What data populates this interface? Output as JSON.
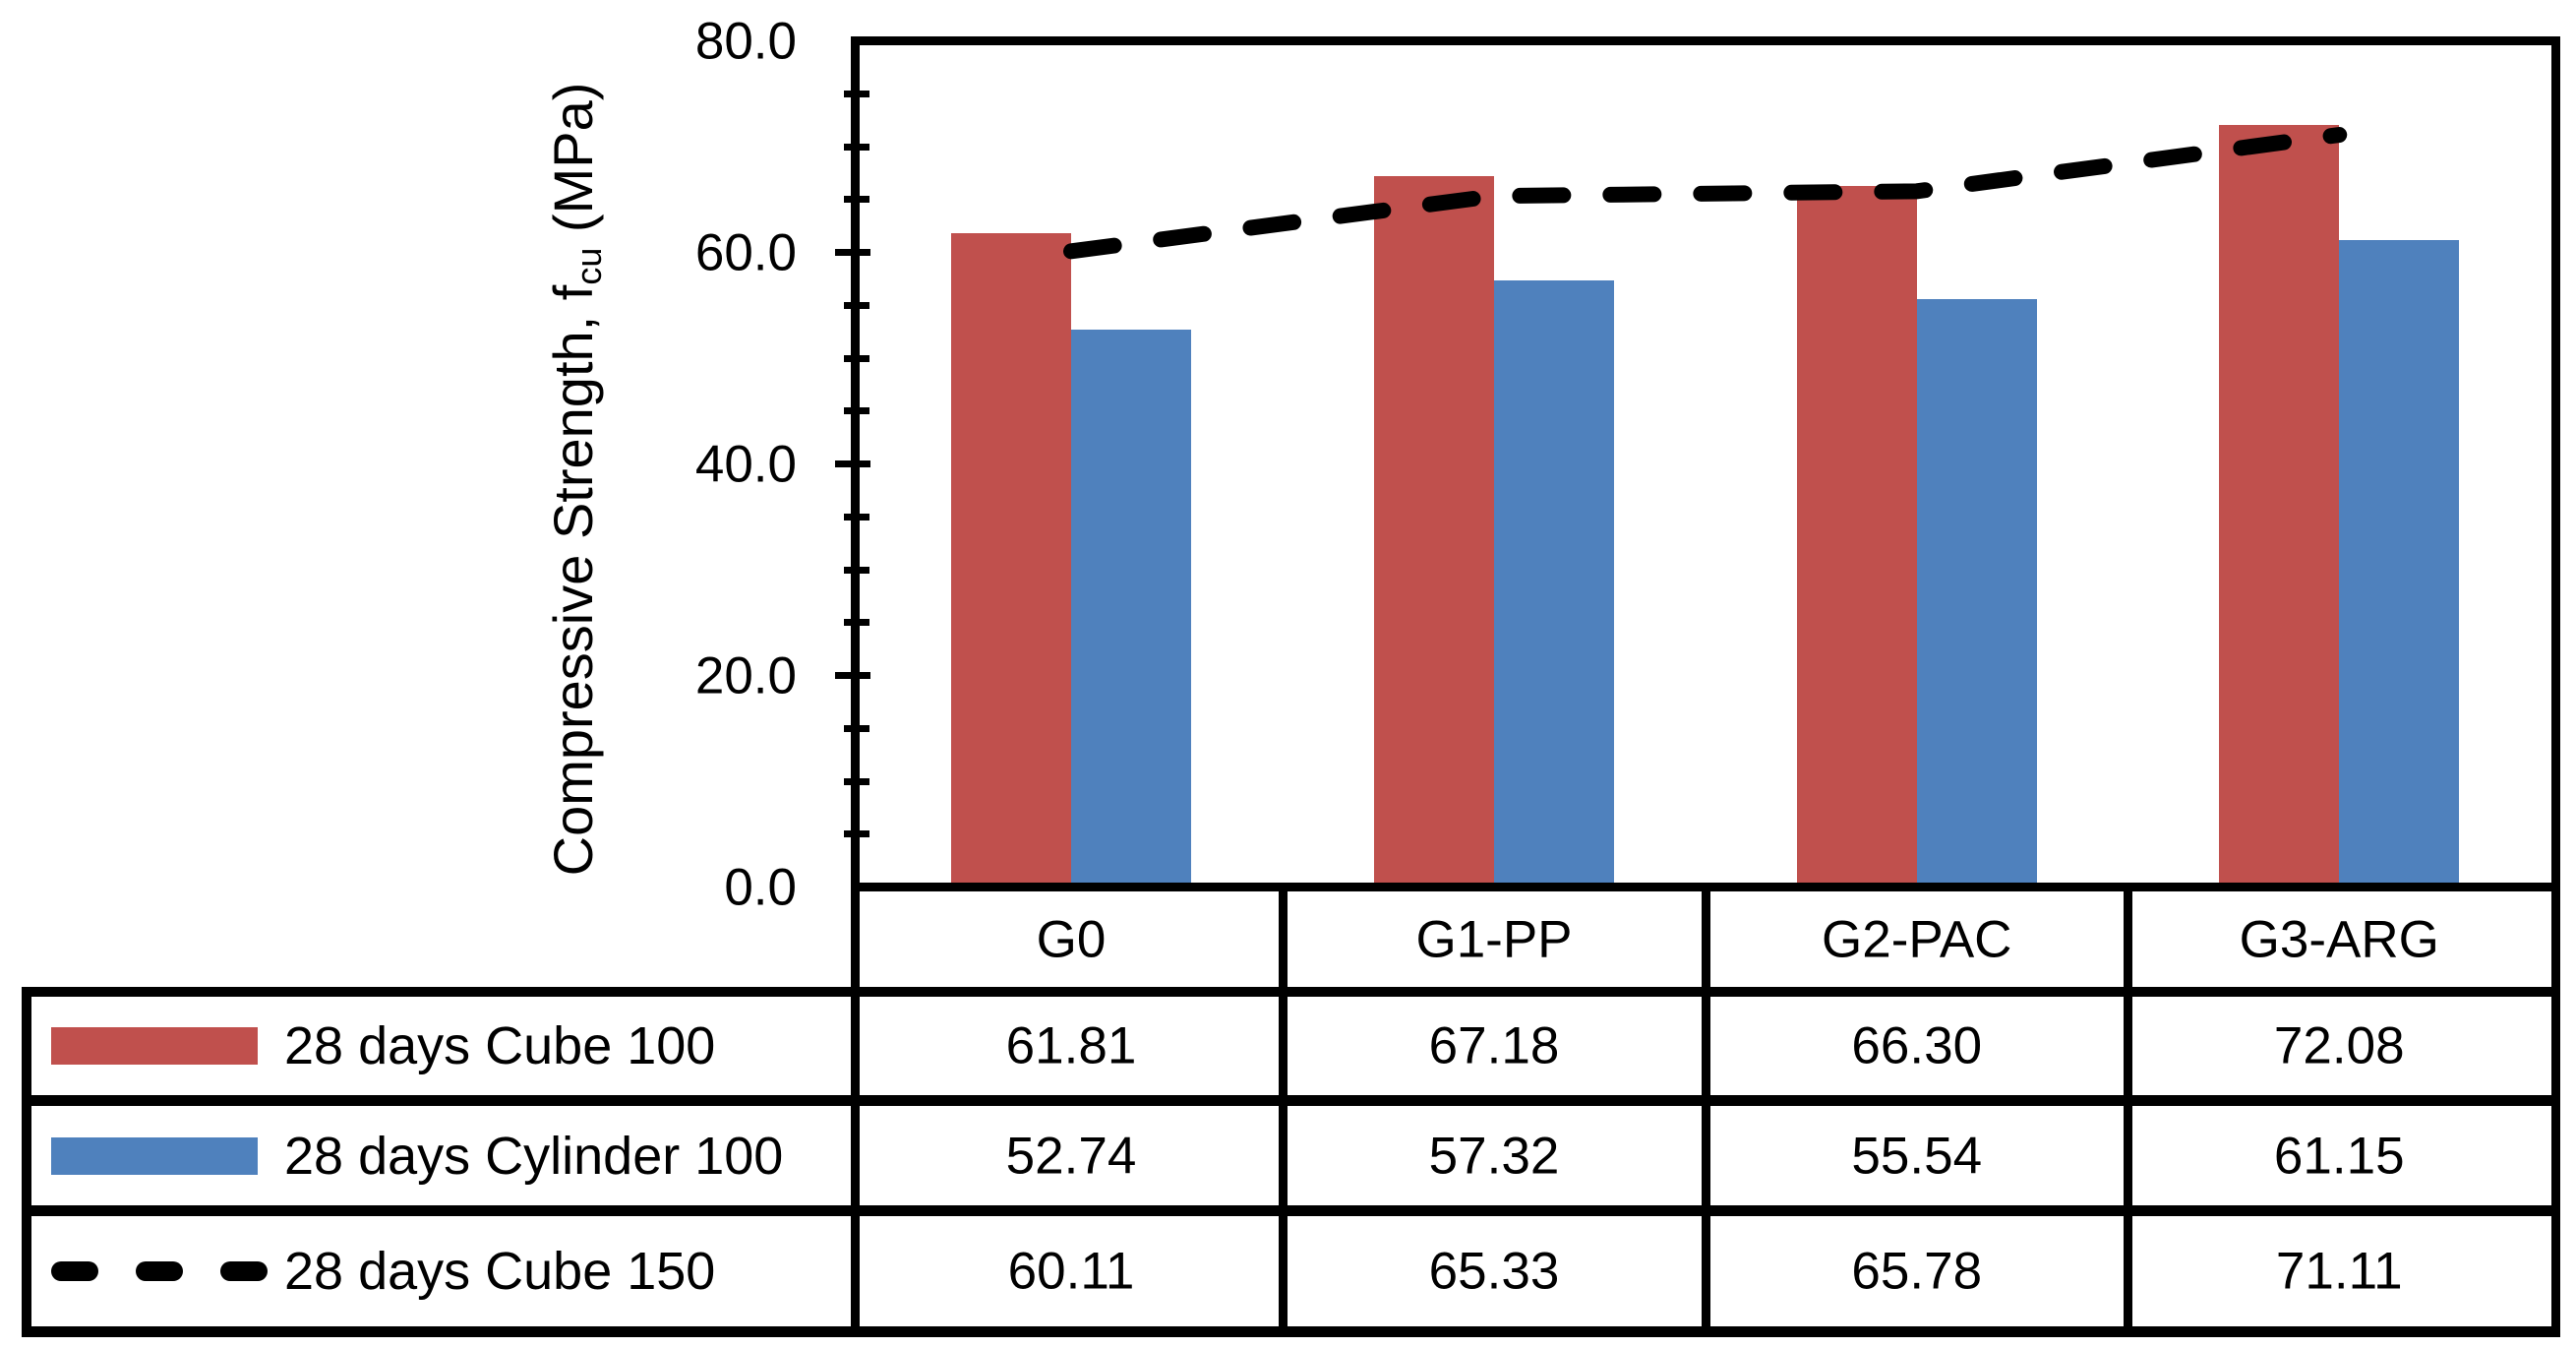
{
  "chart_data": {
    "type": "bar",
    "title": "",
    "categories": [
      "G0",
      "G1-PP",
      "G2-PAC",
      "G3-ARG"
    ],
    "series": [
      {
        "name": "28 days Cube 100",
        "type": "bar",
        "color": "#C0504D",
        "values": [
          61.81,
          67.18,
          66.3,
          72.08
        ]
      },
      {
        "name": "28 days Cylinder 100",
        "type": "bar",
        "color": "#4F81BD",
        "values": [
          52.74,
          57.32,
          55.54,
          61.15
        ]
      },
      {
        "name": "28 days Cube 150",
        "type": "line",
        "line_style": "dashed",
        "color": "#000000",
        "values": [
          60.11,
          65.33,
          65.78,
          71.11
        ]
      }
    ],
    "ylabel_parts": {
      "main": "Compressive Strength, f",
      "sub": "cu",
      "unit": " (MPa)"
    },
    "y_axis": {
      "min": 0,
      "max": 80,
      "major_tick": 20,
      "minor_tick": 5,
      "tick_labels": [
        "80.0",
        "60.0",
        "40.0",
        "20.0",
        "0.0"
      ]
    },
    "grid": false,
    "legend_position": "data-table-left"
  },
  "table": {
    "category_row": [
      "G0",
      "G1-PP",
      "G2-PAC",
      "G3-ARG"
    ],
    "rows": [
      {
        "legend": "28 days Cube 100",
        "key": "bar-red",
        "values": [
          "61.81",
          "67.18",
          "66.30",
          "72.08"
        ]
      },
      {
        "legend": "28 days Cylinder 100",
        "key": "bar-blue",
        "values": [
          "52.74",
          "57.32",
          "55.54",
          "61.15"
        ]
      },
      {
        "legend": "28 days Cube 150",
        "key": "dash",
        "values": [
          "60.11",
          "65.33",
          "65.78",
          "71.11"
        ]
      }
    ]
  },
  "colors": {
    "bar1": "#C0504D",
    "bar2": "#4F81BD",
    "line": "#000000",
    "axis": "#000000",
    "background": "#FFFFFF"
  }
}
